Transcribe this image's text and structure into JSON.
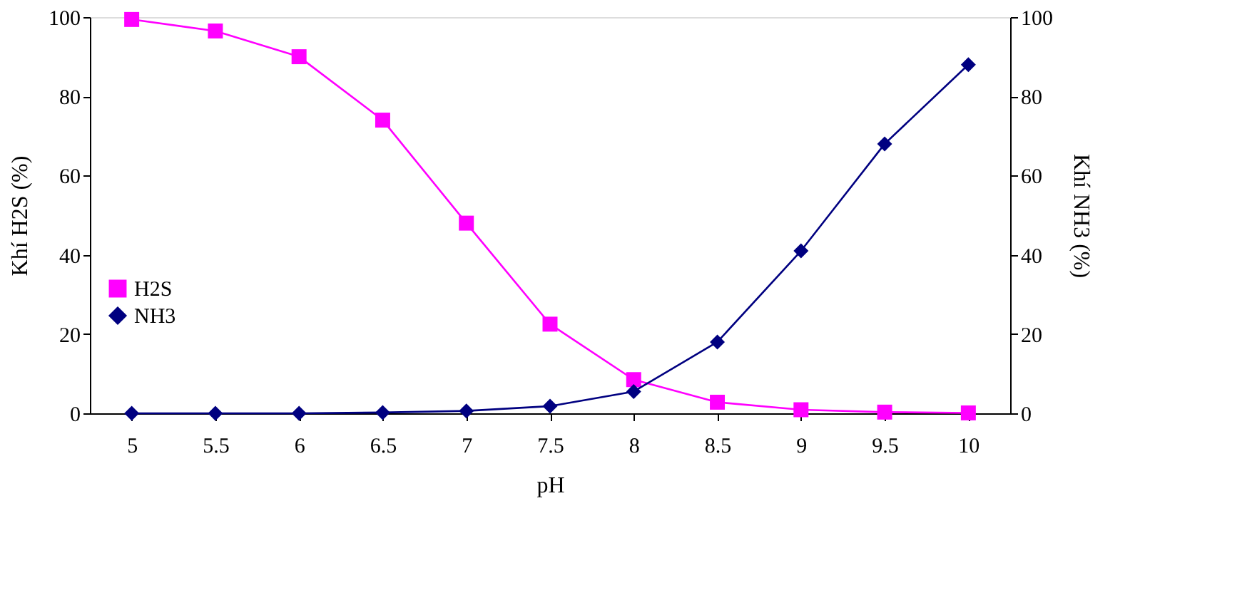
{
  "chart_data": {
    "type": "line",
    "xlabel": "pH",
    "ylabel": "Khí H2S (%)",
    "y2label": "Khí NH3 (%)",
    "categories": [
      "5",
      "5.5",
      "6",
      "6.5",
      "7",
      "7.5",
      "8",
      "8.5",
      "9",
      "9.5",
      "10"
    ],
    "series": [
      {
        "name": "H2S",
        "color": "#ff00ff",
        "marker": "square",
        "values": [
          99.4,
          96.5,
          90,
          74,
          48,
          22.5,
          8.5,
          2.8,
          0.9,
          0.3,
          0.1
        ]
      },
      {
        "name": "NH3",
        "color": "#000080",
        "marker": "diamond",
        "axis": "y2",
        "values": [
          0,
          0,
          0,
          0.2,
          0.6,
          1.8,
          5.5,
          18,
          41,
          68,
          88
        ]
      }
    ],
    "ylim": [
      0,
      100
    ],
    "yticks": [
      0,
      20,
      40,
      60,
      80,
      100
    ],
    "y2lim": [
      0,
      100
    ],
    "y2ticks": [
      0,
      20,
      40,
      60,
      80,
      100
    ],
    "grid": false,
    "legend": "left"
  }
}
